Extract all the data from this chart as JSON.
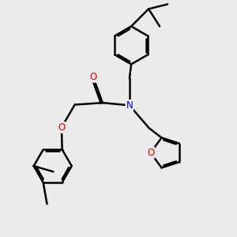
{
  "bg_color": "#ebebeb",
  "atom_colors": {
    "C": "#000000",
    "N": "#0000cc",
    "O": "#dd0000"
  },
  "bond_color": "#000000",
  "bond_width": 1.8,
  "figsize": [
    3.0,
    3.0
  ],
  "dpi": 100,
  "scale": 1.0
}
